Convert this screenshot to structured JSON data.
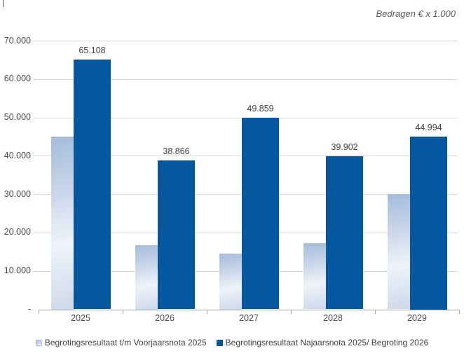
{
  "chart_data": {
    "type": "bar",
    "title": "",
    "note": "Bedragen € x 1.000",
    "categories": [
      "2025",
      "2026",
      "2027",
      "2028",
      "2029"
    ],
    "series": [
      {
        "name": "Begrotingsresultaat t/m Voorjaarsnota 2025",
        "style": "light-gradient",
        "data_labels": false,
        "values": [
          45000,
          16700,
          14600,
          17200,
          30000
        ]
      },
      {
        "name": "Begrotingsresultaat Najaarsnota 2025/ Begroting 2026",
        "style": "solid-dark-blue",
        "data_labels": true,
        "values": [
          65108,
          38866,
          49859,
          39902,
          44994
        ],
        "labels": [
          "65.108",
          "38.866",
          "49.859",
          "39.902",
          "44.994"
        ]
      }
    ],
    "ylim": [
      0,
      70000
    ],
    "ytick_interval": 10000,
    "ytick_labels": [
      "-",
      "10.000",
      "20.000",
      "30.000",
      "40.000",
      "50.000",
      "60.000",
      "70.000"
    ],
    "xlabel": "",
    "ylabel": "",
    "grid": true,
    "legend_position": "bottom",
    "colors": {
      "dark_blue": "#05589f",
      "light_bar_top": "#a4bcda",
      "light_bar_mid": "#eff3f9",
      "light_bar_bottom": "#cdd9ea",
      "gridline": "#d9d9d9",
      "axis": "#a6a6a6",
      "text": "#404040",
      "note_text": "#595959"
    }
  }
}
